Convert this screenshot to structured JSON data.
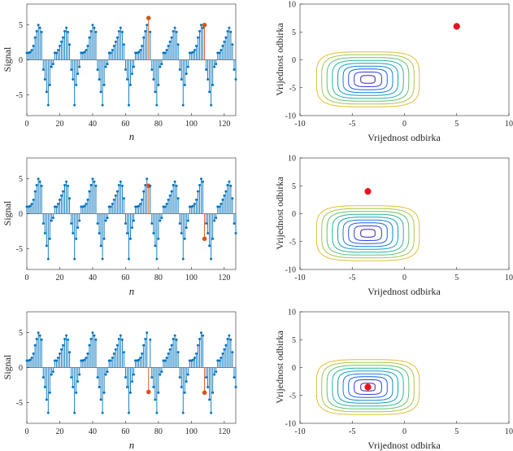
{
  "figure": {
    "left_xlabel": "n",
    "left_ylabel": "Signal",
    "right_xlabel": "Vrijednost odbirka",
    "right_ylabel": "Vrijednost odbirka"
  },
  "chart_data": [
    {
      "type": "stem",
      "title": "",
      "xlabel": "n",
      "ylabel": "Signal",
      "xlim": [
        0,
        127
      ],
      "ylim": [
        -8,
        8
      ],
      "xticks": [
        0,
        20,
        40,
        60,
        80,
        100,
        120
      ],
      "yticks": [
        -5,
        0,
        5
      ],
      "period": 16.5,
      "series": [
        {
          "name": "signal",
          "color": "#0072BD",
          "pattern": [
            1.0,
            1.0,
            1.1,
            1.4,
            2.0,
            2.6,
            3.2,
            4.1,
            5.0,
            4.6,
            4.0,
            2.2,
            -1.4,
            -2.8,
            -4.6,
            -6.5,
            -3.6,
            -2.0,
            -1.0,
            -0.6
          ]
        },
        {
          "name": "highlighted",
          "color": "#D95319",
          "points": [
            [
              74,
              6.0
            ],
            [
              108,
              5.0
            ]
          ]
        }
      ],
      "contour_point": [
        5,
        6
      ]
    },
    {
      "type": "contour",
      "title": "",
      "xlabel": "Vrijednost odbirka",
      "ylabel": "Vrijednost odbirka",
      "xlim": [
        -10,
        10
      ],
      "ylim": [
        -10,
        10
      ],
      "xticks": [
        -10,
        -5,
        0,
        5,
        10
      ],
      "yticks": [
        -10,
        -5,
        0,
        5,
        10
      ],
      "minimum": [
        -3.5,
        -3.5
      ],
      "levels": [
        0.3,
        1.1,
        2.2,
        3.6,
        5.3,
        7.4,
        9.8,
        12.5,
        15.5
      ],
      "point": [
        5,
        6
      ],
      "point_color": "#E8141F"
    },
    {
      "type": "stem",
      "title": "",
      "xlabel": "n",
      "ylabel": "Signal",
      "xlim": [
        0,
        127
      ],
      "ylim": [
        -8,
        8
      ],
      "xticks": [
        0,
        20,
        40,
        60,
        80,
        100,
        120
      ],
      "yticks": [
        -5,
        0,
        5
      ],
      "series": [
        {
          "name": "signal",
          "color": "#0072BD"
        },
        {
          "name": "highlighted",
          "color": "#D95319",
          "points": [
            [
              74,
              4.0
            ],
            [
              108,
              -3.6
            ]
          ]
        }
      ]
    },
    {
      "type": "contour",
      "title": "",
      "xlabel": "Vrijednost odbirka",
      "ylabel": "Vrijednost odbirka",
      "xlim": [
        -10,
        10
      ],
      "ylim": [
        -10,
        10
      ],
      "xticks": [
        -10,
        -5,
        0,
        5,
        10
      ],
      "yticks": [
        -10,
        -5,
        0,
        5,
        10
      ],
      "point": [
        -3.5,
        4
      ],
      "point_color": "#E8141F"
    },
    {
      "type": "stem",
      "title": "",
      "xlabel": "n",
      "ylabel": "Signal",
      "xlim": [
        0,
        127
      ],
      "ylim": [
        -8,
        8
      ],
      "xticks": [
        0,
        20,
        40,
        60,
        80,
        100,
        120
      ],
      "yticks": [
        -5,
        0,
        5
      ],
      "series": [
        {
          "name": "signal",
          "color": "#0072BD"
        },
        {
          "name": "highlighted",
          "color": "#D95319",
          "points": [
            [
              74,
              -3.5
            ],
            [
              108,
              -3.6
            ]
          ]
        }
      ]
    },
    {
      "type": "contour",
      "title": "",
      "xlabel": "Vrijednost odbirka",
      "ylabel": "Vrijednost odbirka",
      "xlim": [
        -10,
        10
      ],
      "ylim": [
        -10,
        10
      ],
      "xticks": [
        -10,
        -5,
        0,
        5,
        10
      ],
      "yticks": [
        -10,
        -5,
        0,
        5,
        10
      ],
      "point": [
        -3.5,
        -3.5
      ],
      "point_color": "#E8141F"
    }
  ]
}
